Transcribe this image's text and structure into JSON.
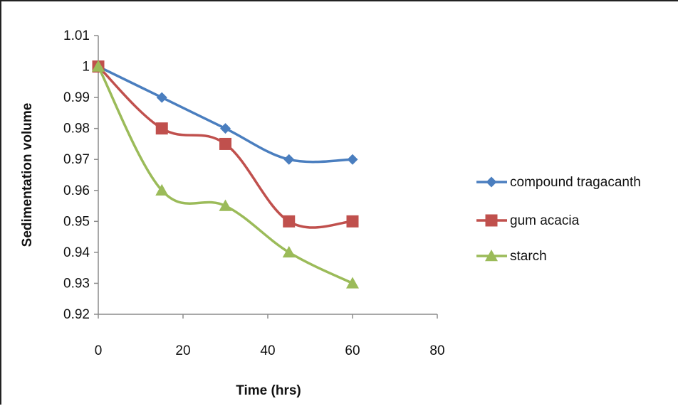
{
  "chart_data": {
    "type": "line",
    "title": "",
    "xlabel": "Time (hrs)",
    "ylabel": "Sedimentation volume",
    "xlim": [
      0,
      80
    ],
    "ylim": [
      0.92,
      1.01
    ],
    "xticks": [
      "0",
      "20",
      "40",
      "60",
      "80"
    ],
    "yticks": [
      "0.92",
      "0.93",
      "0.94",
      "0.95",
      "0.96",
      "0.97",
      "0.98",
      "0.99",
      "1",
      "1.01"
    ],
    "x": [
      0,
      15,
      30,
      45,
      60
    ],
    "grid": false,
    "legend_position": "right",
    "smooth": true,
    "series": [
      {
        "name": "compound tragacanth",
        "values": [
          1.0,
          0.99,
          0.98,
          0.97,
          0.97
        ],
        "color": "#4a7ebf",
        "marker": "diamond"
      },
      {
        "name": "gum acacia",
        "values": [
          1.0,
          0.98,
          0.975,
          0.95,
          0.95
        ],
        "color": "#c0504d",
        "marker": "square"
      },
      {
        "name": "starch",
        "values": [
          1.0,
          0.96,
          0.955,
          0.94,
          0.93
        ],
        "color": "#9bbb59",
        "marker": "triangle"
      }
    ]
  }
}
